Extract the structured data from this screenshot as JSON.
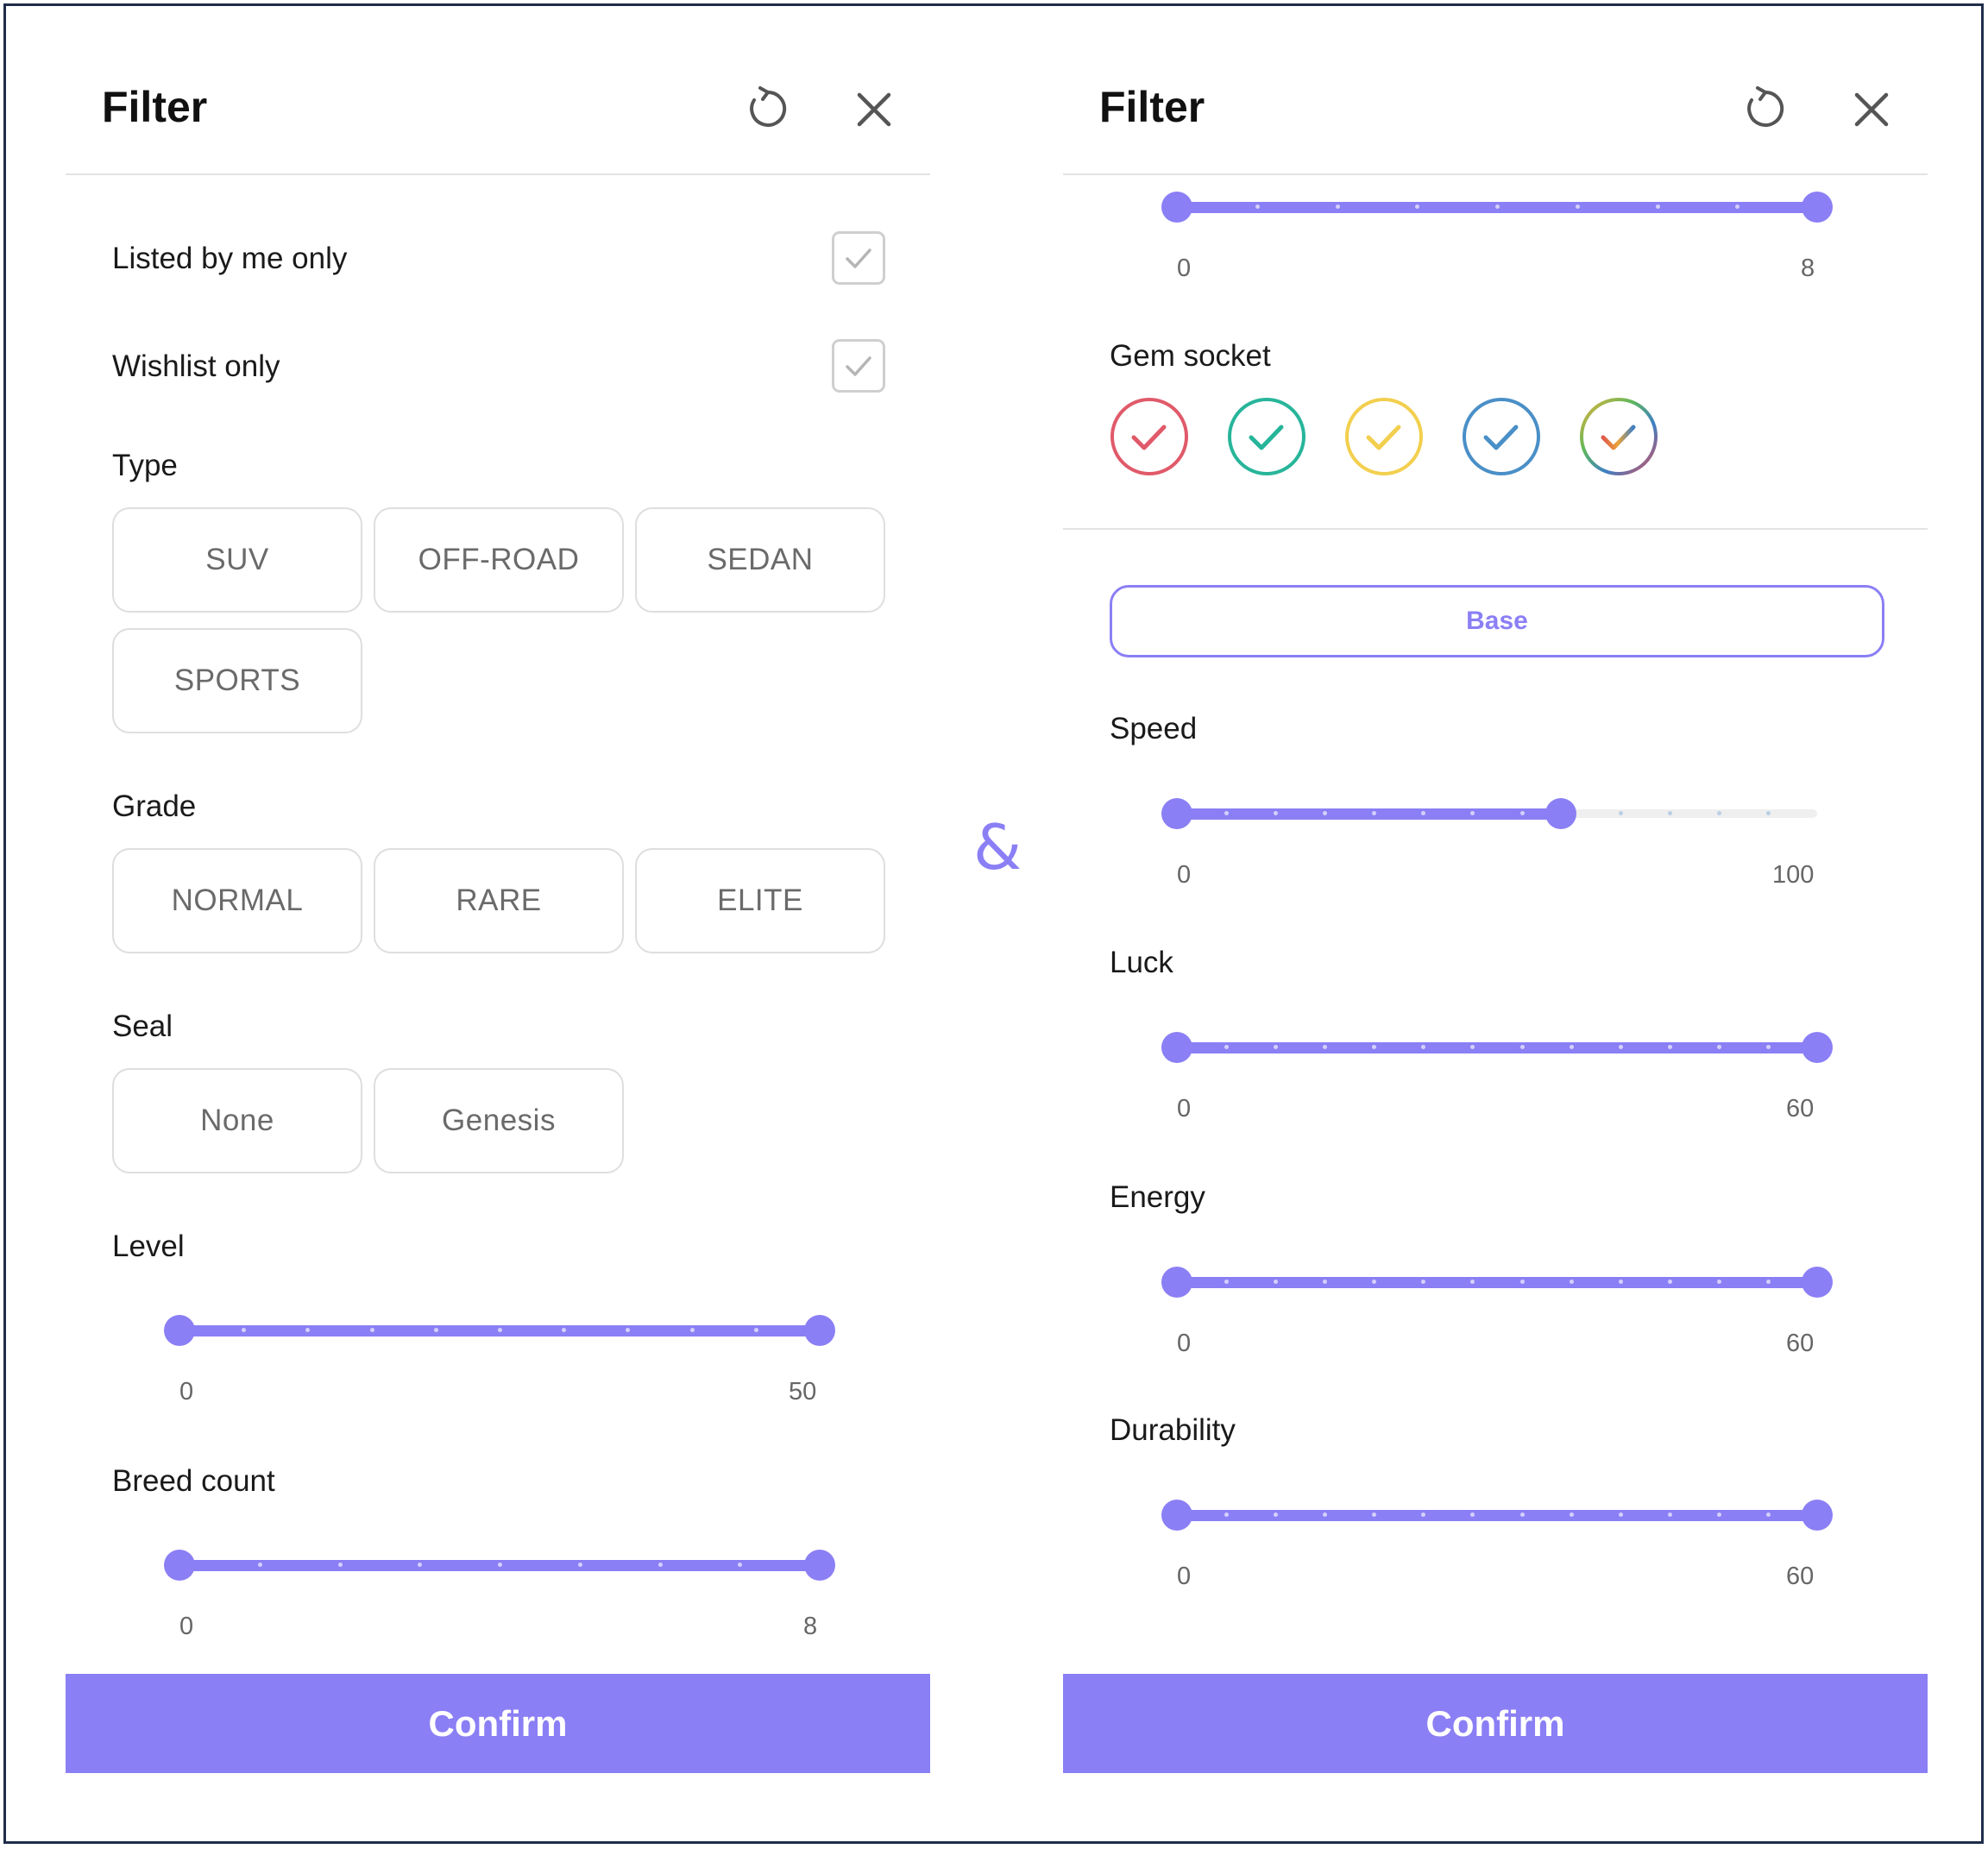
{
  "left_panel": {
    "title": "Filter",
    "checkboxes": [
      {
        "label": "Listed by me only",
        "checked": true
      },
      {
        "label": "Wishlist only",
        "checked": true
      }
    ],
    "type": {
      "label": "Type",
      "options": [
        "SUV",
        "OFF-ROAD",
        "SEDAN",
        "SPORTS"
      ]
    },
    "grade": {
      "label": "Grade",
      "options": [
        "NORMAL",
        "RARE",
        "ELITE"
      ]
    },
    "seal": {
      "label": "Seal",
      "options": [
        "None",
        "Genesis"
      ]
    },
    "level": {
      "label": "Level",
      "min": "0",
      "max": "50",
      "value_low": 0,
      "value_high": 50
    },
    "breed_count": {
      "label": "Breed count",
      "min": "0",
      "max": "8",
      "value_low": 0,
      "value_high": 8
    },
    "confirm_label": "Confirm"
  },
  "separator": "&",
  "right_panel": {
    "title": "Filter",
    "breed_count_slider": {
      "min": "0",
      "max": "8",
      "value_low": 0,
      "value_high": 8
    },
    "gem_socket": {
      "label": "Gem socket",
      "colors": [
        "#e05a6a",
        "#27b59a",
        "#f2cf4e",
        "#4a8fc7",
        "rainbow"
      ]
    },
    "base_label": "Base",
    "speed": {
      "label": "Speed",
      "min": "0",
      "max": "100",
      "value_low": 0,
      "value_high": 60
    },
    "luck": {
      "label": "Luck",
      "min": "0",
      "max": "60",
      "value_low": 0,
      "value_high": 60
    },
    "energy": {
      "label": "Energy",
      "min": "0",
      "max": "60",
      "value_low": 0,
      "value_high": 60
    },
    "durability": {
      "label": "Durability",
      "min": "0",
      "max": "60",
      "value_low": 0,
      "value_high": 60
    },
    "confirm_label": "Confirm"
  },
  "colors": {
    "accent": "#8b7ff5",
    "frame": "#1f2d4a"
  }
}
